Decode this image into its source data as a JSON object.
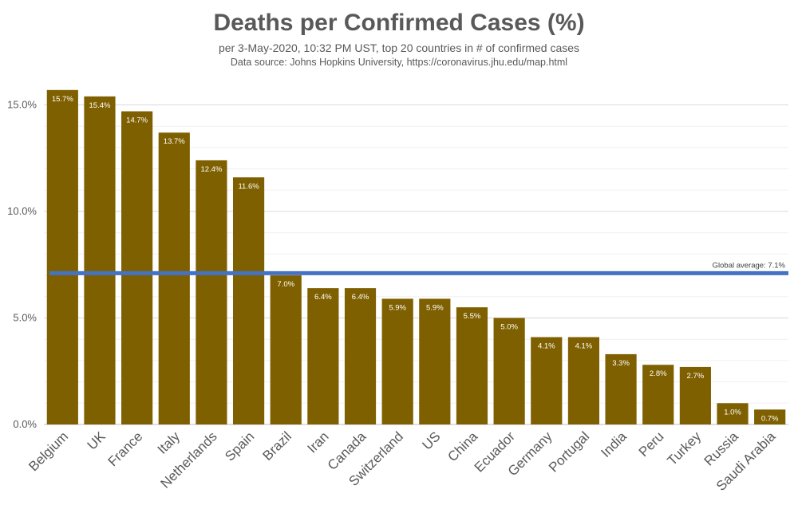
{
  "chart_data": {
    "type": "bar",
    "title": "Deaths per Confirmed Cases (%)",
    "subtitle": "per 3-May-2020, 10:32 PM UST, top 20 countries in # of confirmed cases",
    "source": "Data source: Johns Hopkins University, https://coronavirus.jhu.edu/map.html",
    "categories": [
      "Belgium",
      "UK",
      "France",
      "Italy",
      "Netherlands",
      "Spain",
      "Brazil",
      "Iran",
      "Canada",
      "Switzerland",
      "US",
      "China",
      "Ecuador",
      "Germany",
      "Portugal",
      "India",
      "Peru",
      "Turkey",
      "Russia",
      "Saudi Arabia"
    ],
    "values": [
      15.7,
      15.4,
      14.7,
      13.7,
      12.4,
      11.6,
      7.0,
      6.4,
      6.4,
      5.9,
      5.9,
      5.5,
      5.0,
      4.1,
      4.1,
      3.3,
      2.8,
      2.7,
      1.0,
      0.7
    ],
    "data_labels": [
      "15.7%",
      "15.4%",
      "14.7%",
      "13.7%",
      "12.4%",
      "11.6%",
      "7.0%",
      "6.4%",
      "6.4%",
      "5.9%",
      "5.9%",
      "5.5%",
      "5.0%",
      "4.1%",
      "4.1%",
      "3.3%",
      "2.8%",
      "2.7%",
      "1.0%",
      "0.7%"
    ],
    "yticks": [
      0,
      5,
      10,
      15
    ],
    "ytick_labels": [
      "0.0%",
      "5.0%",
      "10.0%",
      "15.0%"
    ],
    "ylim": [
      0,
      16
    ],
    "grid": true,
    "minor_grid": true,
    "bar_color": "#7f6000",
    "reference_line": {
      "value": 7.1,
      "label": "Global average: 7.1%",
      "color": "#4472c4"
    }
  }
}
